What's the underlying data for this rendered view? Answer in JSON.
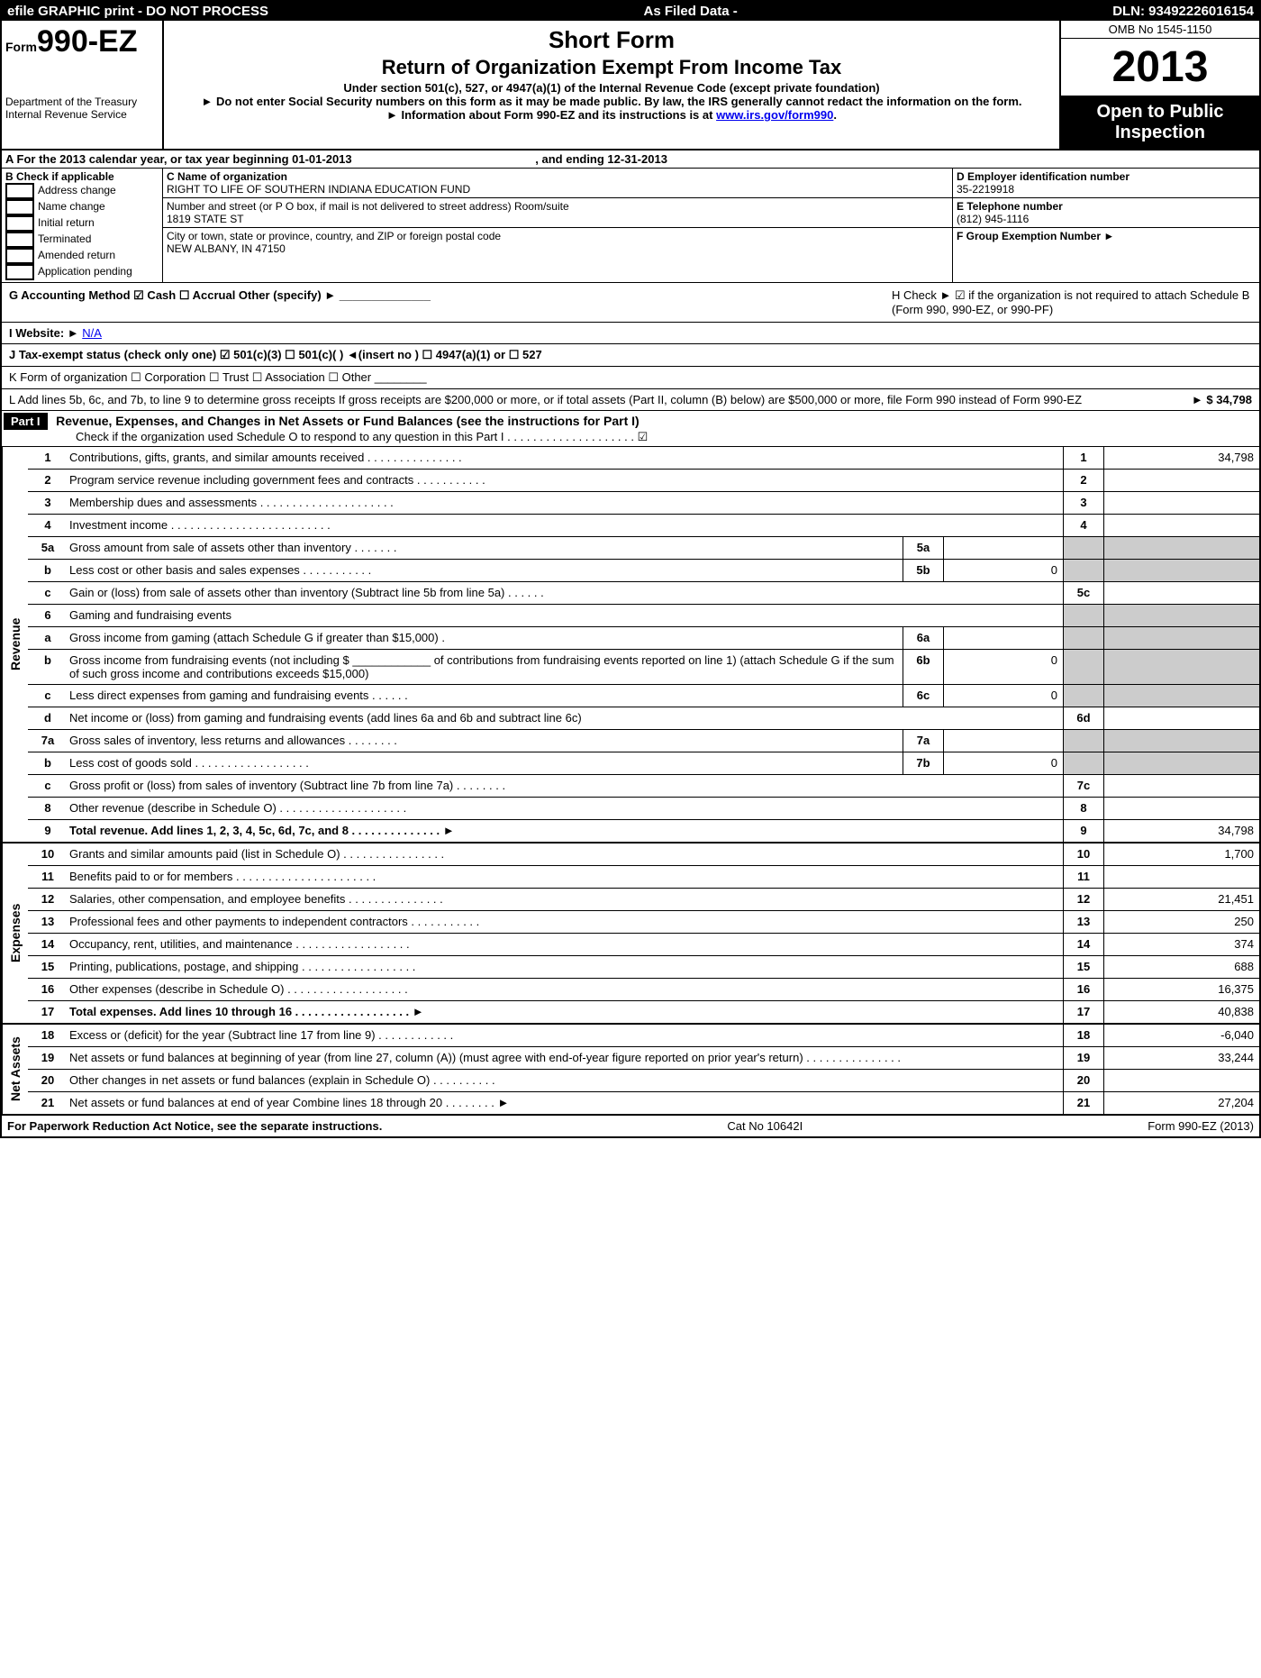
{
  "topbar": {
    "left": "efile GRAPHIC print - DO NOT PROCESS",
    "center": "As Filed Data -",
    "right": "DLN: 93492226016154"
  },
  "header": {
    "form_prefix": "Form",
    "form_number": "990-EZ",
    "dept": "Department of the Treasury",
    "irs": "Internal Revenue Service",
    "title1": "Short Form",
    "title2": "Return of Organization Exempt From Income Tax",
    "subtitle": "Under section 501(c), 527, or 4947(a)(1) of the Internal Revenue Code (except private foundation)",
    "note1": "► Do not enter Social Security numbers on this form as it may be made public. By law, the IRS generally cannot redact the information on the form.",
    "note2_prefix": "► Information about Form 990-EZ and its instructions is at ",
    "note2_link": "www.irs.gov/form990",
    "note2_suffix": ".",
    "omb": "OMB No 1545-1150",
    "year": "2013",
    "open": "Open to Public Inspection"
  },
  "line_A": {
    "text": "A  For the 2013 calendar year, or tax year beginning 01-01-2013",
    "end": ", and ending 12-31-2013"
  },
  "block_B": {
    "title": "B  Check if applicable",
    "items": [
      "Address change",
      "Name change",
      "Initial return",
      "Terminated",
      "Amended return",
      "Application pending"
    ]
  },
  "block_C": {
    "name_label": "C Name of organization",
    "name": "RIGHT TO LIFE OF SOUTHERN INDIANA EDUCATION FUND",
    "street_label": "Number and street (or P O box, if mail is not delivered to street address) Room/suite",
    "street": "1819 STATE ST",
    "city_label": "City or town, state or province, country, and ZIP or foreign postal code",
    "city": "NEW ALBANY, IN  47150"
  },
  "block_D": {
    "d_label": "D Employer identification number",
    "d_value": "35-2219918",
    "e_label": "E Telephone number",
    "e_value": "(812) 945-1116",
    "f_label": "F Group Exemption Number  ►"
  },
  "section_G": {
    "g": "G Accounting Method   ☑ Cash  ☐ Accrual  Other (specify) ► ______________",
    "i": "I Website: ►",
    "i_val": "N/A",
    "j": "J Tax-exempt status (check only one) ☑ 501(c)(3)  ☐ 501(c)(  ) ◄(insert no ) ☐ 4947(a)(1) or ☐ 527",
    "k": "K Form of organization   ☐ Corporation  ☐ Trust  ☐ Association  ☐ Other ________",
    "h": "H  Check ► ☑ if the organization is not required to attach Schedule B (Form 990, 990-EZ, or 990-PF)",
    "l": "L Add lines 5b, 6c, and 7b, to line 9 to determine gross receipts  If gross receipts are $200,000 or more, or if total assets (Part II, column (B) below) are $500,000 or more, file Form 990 instead of Form 990-EZ",
    "l_total": "► $ 34,798"
  },
  "part1": {
    "label": "Part I",
    "title": "Revenue, Expenses, and Changes in Net Assets or Fund Balances (see the instructions for Part I)",
    "check": "Check if the organization used Schedule O to respond to any question in this Part I  . . . . . . . . . . . . . . . . . . . . ☑"
  },
  "sections": {
    "revenue": "Revenue",
    "expenses": "Expenses",
    "netassets": "Net Assets"
  },
  "lines": [
    {
      "n": "1",
      "desc": "Contributions, gifts, grants, and similar amounts received    .  .  .  .  .  .  .  .  .  .  .  .  .  .  .",
      "box": "1",
      "amt": "34,798"
    },
    {
      "n": "2",
      "desc": "Program service revenue including government fees and contracts    .  .  .  .  .  .  .  .  .  .  .",
      "box": "2",
      "amt": ""
    },
    {
      "n": "3",
      "desc": "Membership dues and assessments     .  .  .  .  .  .  .  .  .  .  .  .  .  .  .  .  .  .  .  .  .",
      "box": "3",
      "amt": ""
    },
    {
      "n": "4",
      "desc": "Investment income      .  .  .  .  .  .  .  .  .  .  .  .  .  .  .  .  .  .  .  .  .  .  .  .  .",
      "box": "4",
      "amt": ""
    },
    {
      "n": "5a",
      "desc": "Gross amount from sale of assets other than inventory     .  .  .  .  .  .  .",
      "sub": "5a",
      "subamt": ""
    },
    {
      "n": "b",
      "desc": "Less  cost or other basis and sales expenses      .  .  .  .  .  .  .  .  .  .  .",
      "sub": "5b",
      "subamt": "0"
    },
    {
      "n": "c",
      "desc": "Gain or (loss) from sale of assets other than inventory (Subtract line 5b from line 5a)   .  .  .  .  .  .",
      "box": "5c",
      "amt": ""
    },
    {
      "n": "6",
      "desc": "Gaming and fundraising events",
      "box": "",
      "amt": "",
      "grey": true
    },
    {
      "n": "a",
      "desc": "Gross income from gaming (attach Schedule G if greater than $15,000)     .",
      "sub": "6a",
      "subamt": ""
    },
    {
      "n": "b",
      "desc": "Gross income from fundraising events (not including $ ____________ of contributions from fundraising events reported on line 1) (attach Schedule G if the sum of such gross income and contributions exceeds $15,000)",
      "sub": "6b",
      "subamt": "0"
    },
    {
      "n": "c",
      "desc": "Less  direct expenses from gaming and fundraising events     .  .  .  .  .  .",
      "sub": "6c",
      "subamt": "0"
    },
    {
      "n": "d",
      "desc": "Net income or (loss) from gaming and fundraising events (add lines 6a and 6b and subtract line 6c)",
      "box": "6d",
      "amt": ""
    },
    {
      "n": "7a",
      "desc": "Gross sales of inventory, less returns and allowances     .  .  .  .  .  .  .  .",
      "sub": "7a",
      "subamt": ""
    },
    {
      "n": "b",
      "desc": "Less  cost of goods sold      .  .  .  .  .  .  .  .  .  .  .  .  .  .  .  .  .  .",
      "sub": "7b",
      "subamt": "0"
    },
    {
      "n": "c",
      "desc": "Gross profit or (loss) from sales of inventory (Subtract line 7b from line 7a)    .  .  .  .  .  .  .  .",
      "box": "7c",
      "amt": ""
    },
    {
      "n": "8",
      "desc": "Other revenue (describe in Schedule O)   .  .  .  .  .  .  .  .  .  .  .  .  .  .  .  .  .  .  .  .",
      "box": "8",
      "amt": ""
    },
    {
      "n": "9",
      "desc": "Total revenue. Add lines 1, 2, 3, 4, 5c, 6d, 7c, and 8    .  .  .  .  .  .  .  .  .  .  .  .  .  .  ►",
      "box": "9",
      "amt": "34,798",
      "bold": true
    }
  ],
  "exp_lines": [
    {
      "n": "10",
      "desc": "Grants and similar amounts paid (list in Schedule O)   .  .  .  .  .  .  .  .  .  .  .  .  .  .  .  .",
      "box": "10",
      "amt": "1,700"
    },
    {
      "n": "11",
      "desc": "Benefits paid to or for members    .  .  .  .  .  .  .  .  .  .  .  .  .  .  .  .  .  .  .  .  .  .",
      "box": "11",
      "amt": ""
    },
    {
      "n": "12",
      "desc": "Salaries, other compensation, and employee benefits     .  .  .  .  .  .  .  .  .  .  .  .  .  .  .",
      "box": "12",
      "amt": "21,451"
    },
    {
      "n": "13",
      "desc": "Professional fees and other payments to independent contractors     .  .  .  .  .  .  .  .  .  .  .",
      "box": "13",
      "amt": "250"
    },
    {
      "n": "14",
      "desc": "Occupancy, rent, utilities, and maintenance     .  .  .  .  .  .  .  .  .  .  .  .  .  .  .  .  .  .",
      "box": "14",
      "amt": "374"
    },
    {
      "n": "15",
      "desc": "Printing, publications, postage, and shipping    .  .  .  .  .  .  .  .  .  .  .  .  .  .  .  .  .  .",
      "box": "15",
      "amt": "688"
    },
    {
      "n": "16",
      "desc": "Other expenses (describe in Schedule O)    .  .  .  .  .  .  .  .  .  .  .  .  .  .  .  .  .  .  .",
      "box": "16",
      "amt": "16,375"
    },
    {
      "n": "17",
      "desc": "Total expenses. Add lines 10 through 16     .  .  .  .  .  .  .  .  .  .  .  .  .  .  .  .  .  .  ►",
      "box": "17",
      "amt": "40,838",
      "bold": true
    }
  ],
  "na_lines": [
    {
      "n": "18",
      "desc": "Excess or (deficit) for the year (Subtract line 17 from line 9)     .  .  .  .  .  .  .  .  .  .  .  .",
      "box": "18",
      "amt": "-6,040"
    },
    {
      "n": "19",
      "desc": "Net assets or fund balances at beginning of year (from line 27, column (A)) (must agree with end-of-year figure reported on prior year's return)     .  .  .  .  .  .  .  .  .  .  .  .  .  .  .",
      "box": "19",
      "amt": "33,244"
    },
    {
      "n": "20",
      "desc": "Other changes in net assets or fund balances (explain in Schedule O)    .  .  .  .  .  .  .  .  .  .",
      "box": "20",
      "amt": ""
    },
    {
      "n": "21",
      "desc": "Net assets or fund balances at end of year  Combine lines 18 through 20    .  .  .  .  .  .  .  .  ►",
      "box": "21",
      "amt": "27,204"
    }
  ],
  "footer": {
    "left": "For Paperwork Reduction Act Notice, see the separate instructions.",
    "center": "Cat No 10642I",
    "right": "Form 990-EZ (2013)"
  }
}
